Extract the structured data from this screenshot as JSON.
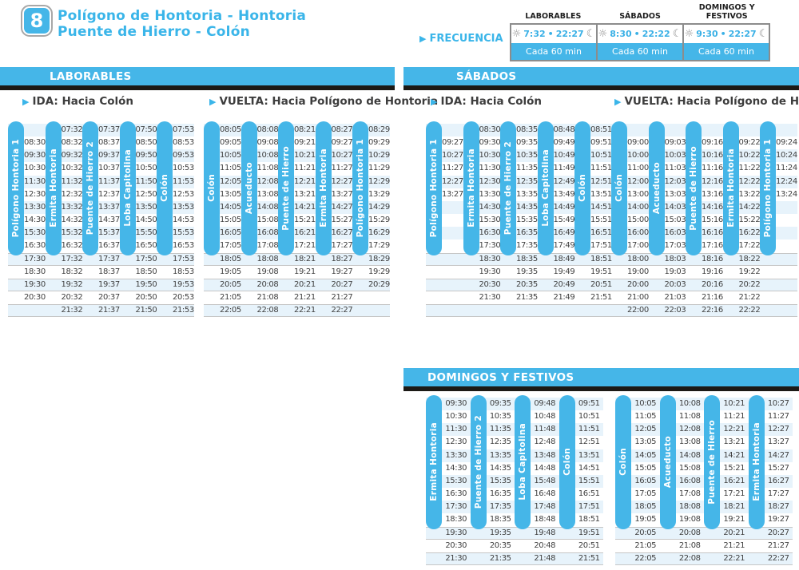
{
  "route": {
    "number": "8",
    "title_line1": "Polígono de Hontoria - Hontoria",
    "title_line2": "Puente de Hierro - Colón"
  },
  "frequency": {
    "label": "FRECUENCIA",
    "bullet": "•",
    "sun_icon": "☼",
    "moon_icon": "☾",
    "columns": [
      {
        "header": "LABORABLES",
        "start": "7:32",
        "end": "22:27",
        "interval": "Cada 60 min"
      },
      {
        "header": "SÁBADOS",
        "start": "8:30",
        "end": "22:22",
        "interval": "Cada 60 min"
      },
      {
        "header": "DOMINGOS Y FESTIVOS",
        "start": "9:30",
        "end": "22:27",
        "interval": "Cada 60 min"
      }
    ]
  },
  "sections": [
    {
      "title": "LABORABLES",
      "tables": [
        {
          "direction": "IDA: Hacia Colón",
          "stops": [
            "Polígono Hontoria 1",
            "Ermita Hontoria",
            "Puente de Hierro 2",
            "Loba Capitolina",
            "Colón"
          ],
          "rows": [
            [
              "",
              "07:32",
              "07:37",
              "07:50",
              "07:53"
            ],
            [
              "08:30",
              "08:32",
              "08:37",
              "08:50",
              "08:53"
            ],
            [
              "09:30",
              "09:32",
              "09:37",
              "09:50",
              "09:53"
            ],
            [
              "10:30",
              "10:32",
              "10:37",
              "10:50",
              "10:53"
            ],
            [
              "11:30",
              "11:32",
              "11:37",
              "11:50",
              "11:53"
            ],
            [
              "12:30",
              "12:32",
              "12:37",
              "12:50",
              "12:53"
            ],
            [
              "13:30",
              "13:32",
              "13:37",
              "13:50",
              "13:53"
            ],
            [
              "14:30",
              "14:32",
              "14:37",
              "14:50",
              "14:53"
            ],
            [
              "15:30",
              "15:32",
              "15:37",
              "15:50",
              "15:53"
            ],
            [
              "16:30",
              "16:32",
              "16:37",
              "16:50",
              "16:53"
            ],
            [
              "17:30",
              "17:32",
              "17:37",
              "17:50",
              "17:53"
            ],
            [
              "18:30",
              "18:32",
              "18:37",
              "18:50",
              "18:53"
            ],
            [
              "19:30",
              "19:32",
              "19:37",
              "19:50",
              "19:53"
            ],
            [
              "20:30",
              "20:32",
              "20:37",
              "20:50",
              "20:53"
            ],
            [
              "",
              "21:32",
              "21:37",
              "21:50",
              "21:53"
            ]
          ]
        },
        {
          "direction": "VUELTA: Hacia Polígono de Hontoria",
          "stops": [
            "Colón",
            "Acueducto",
            "Puente de Hierro",
            "Ermita Hontoria",
            "Polígono Hontoria 1"
          ],
          "rows": [
            [
              "08:05",
              "08:08",
              "08:21",
              "08:27",
              "08:29"
            ],
            [
              "09:05",
              "09:08",
              "09:21",
              "09:27",
              "09:29"
            ],
            [
              "10:05",
              "10:08",
              "10:21",
              "10:27",
              "10:29"
            ],
            [
              "11:05",
              "11:08",
              "11:21",
              "11:27",
              "11:29"
            ],
            [
              "12:05",
              "12:08",
              "12:21",
              "12:27",
              "12:29"
            ],
            [
              "13:05",
              "13:08",
              "13:21",
              "13:27",
              "13:29"
            ],
            [
              "14:05",
              "14:08",
              "14:21",
              "14:27",
              "14:29"
            ],
            [
              "15:05",
              "15:08",
              "15:21",
              "15:27",
              "15:29"
            ],
            [
              "16:05",
              "16:08",
              "16:21",
              "16:27",
              "16:29"
            ],
            [
              "17:05",
              "17:08",
              "17:21",
              "17:27",
              "17:29"
            ],
            [
              "18:05",
              "18:08",
              "18:21",
              "18:27",
              "18:29"
            ],
            [
              "19:05",
              "19:08",
              "19:21",
              "19:27",
              "19:29"
            ],
            [
              "20:05",
              "20:08",
              "20:21",
              "20:27",
              "20:29"
            ],
            [
              "21:05",
              "21:08",
              "21:21",
              "21:27",
              ""
            ],
            [
              "22:05",
              "22:08",
              "22:21",
              "22:27",
              ""
            ]
          ]
        }
      ]
    },
    {
      "title": "SÁBADOS",
      "tables": [
        {
          "direction": "IDA: Hacia Colón",
          "stops": [
            "Polígono Hontoria 1",
            "Ermita Hontoria",
            "Puente de Hierro 2",
            "Loba Capitolina",
            "Colón"
          ],
          "rows": [
            [
              "",
              "08:30",
              "08:35",
              "08:48",
              "08:51"
            ],
            [
              "09:27",
              "09:30",
              "09:35",
              "09:49",
              "09:51"
            ],
            [
              "10:27",
              "10:30",
              "10:35",
              "10:49",
              "10:51"
            ],
            [
              "11:27",
              "11:30",
              "11:35",
              "11:49",
              "11:51"
            ],
            [
              "12:27",
              "12:30",
              "12:35",
              "12:49",
              "12:51"
            ],
            [
              "13:27",
              "13:30",
              "13:35",
              "13:49",
              "13:51"
            ],
            [
              "",
              "14:30",
              "14:35",
              "14:49",
              "14:51"
            ],
            [
              "",
              "15:30",
              "15:35",
              "15:49",
              "15:51"
            ],
            [
              "",
              "16:30",
              "16:35",
              "16:49",
              "16:51"
            ],
            [
              "",
              "17:30",
              "17:35",
              "17:49",
              "17:51"
            ],
            [
              "",
              "18:30",
              "18:35",
              "18:49",
              "18:51"
            ],
            [
              "",
              "19:30",
              "19:35",
              "19:49",
              "19:51"
            ],
            [
              "",
              "20:30",
              "20:35",
              "20:49",
              "20:51"
            ],
            [
              "",
              "21:30",
              "21:35",
              "21:49",
              "21:51"
            ],
            [
              "",
              "",
              "",
              "",
              ""
            ]
          ]
        },
        {
          "direction": "VUELTA: Hacia Polígono de Hontoria",
          "stops": [
            "Colón",
            "Acueducto",
            "Puente de Hierro",
            "Ermita Hontoria",
            "Polígono Hontoria 1"
          ],
          "rows": [
            [
              "",
              "",
              "",
              "",
              ""
            ],
            [
              "09:00",
              "09:03",
              "09:16",
              "09:22",
              "09:24"
            ],
            [
              "10:00",
              "10:03",
              "10:16",
              "10:22",
              "10:24"
            ],
            [
              "11:00",
              "11:03",
              "11:16",
              "11:22",
              "11:24"
            ],
            [
              "12:00",
              "12:03",
              "12:16",
              "12:22",
              "12:24"
            ],
            [
              "13:00",
              "13:03",
              "13:16",
              "13:22",
              "13:24"
            ],
            [
              "14:00",
              "14:03",
              "14:16",
              "14:22",
              ""
            ],
            [
              "15:00",
              "15:03",
              "15:16",
              "15:22",
              ""
            ],
            [
              "16:00",
              "16:03",
              "16:16",
              "16:22",
              ""
            ],
            [
              "17:00",
              "17:03",
              "17:16",
              "17:22",
              ""
            ],
            [
              "18:00",
              "18:03",
              "18:16",
              "18:22",
              ""
            ],
            [
              "19:00",
              "19:03",
              "19:16",
              "19:22",
              ""
            ],
            [
              "20:00",
              "20:03",
              "20:16",
              "20:22",
              ""
            ],
            [
              "21:00",
              "21:03",
              "21:16",
              "21:22",
              ""
            ],
            [
              "22:00",
              "22:03",
              "22:16",
              "22:22",
              ""
            ]
          ]
        }
      ]
    },
    {
      "title": "DOMINGOS Y FESTIVOS",
      "tables": [
        {
          "direction": "",
          "stops": [
            "Ermita Hontoria",
            "Puente de Hierro 2",
            "Loba Capitolina",
            "Colón"
          ],
          "rows": [
            [
              "09:30",
              "09:35",
              "09:48",
              "09:51"
            ],
            [
              "10:30",
              "10:35",
              "10:48",
              "10:51"
            ],
            [
              "11:30",
              "11:35",
              "11:48",
              "11:51"
            ],
            [
              "12:30",
              "12:35",
              "12:48",
              "12:51"
            ],
            [
              "13:30",
              "13:35",
              "13:48",
              "13:51"
            ],
            [
              "14:30",
              "14:35",
              "14:48",
              "14:51"
            ],
            [
              "15:30",
              "15:35",
              "15:48",
              "15:51"
            ],
            [
              "16:30",
              "16:35",
              "16:48",
              "16:51"
            ],
            [
              "17:30",
              "17:35",
              "17:48",
              "17:51"
            ],
            [
              "18:30",
              "18:35",
              "18:48",
              "18:51"
            ],
            [
              "19:30",
              "19:35",
              "19:48",
              "19:51"
            ],
            [
              "20:30",
              "20:35",
              "20:48",
              "20:51"
            ],
            [
              "21:30",
              "21:35",
              "21:48",
              "21:51"
            ]
          ]
        },
        {
          "direction": "",
          "stops": [
            "Colón",
            "Acueducto",
            "Puente de Hierro",
            "Ermita Hontoria"
          ],
          "rows": [
            [
              "10:05",
              "10:08",
              "10:21",
              "10:27"
            ],
            [
              "11:05",
              "11:08",
              "11:21",
              "11:27"
            ],
            [
              "12:05",
              "12:08",
              "12:21",
              "12:27"
            ],
            [
              "13:05",
              "13:08",
              "13:21",
              "13:27"
            ],
            [
              "14:05",
              "14:08",
              "14:21",
              "14:27"
            ],
            [
              "15:05",
              "15:08",
              "15:21",
              "15:27"
            ],
            [
              "16:05",
              "16:08",
              "16:21",
              "16:27"
            ],
            [
              "17:05",
              "17:08",
              "17:21",
              "17:27"
            ],
            [
              "18:05",
              "18:08",
              "18:21",
              "18:27"
            ],
            [
              "19:05",
              "19:08",
              "19:21",
              "19:27"
            ],
            [
              "20:05",
              "20:08",
              "20:21",
              "20:27"
            ],
            [
              "21:05",
              "21:08",
              "21:21",
              "21:27"
            ],
            [
              "22:05",
              "22:08",
              "22:21",
              "22:27"
            ]
          ]
        }
      ]
    }
  ]
}
